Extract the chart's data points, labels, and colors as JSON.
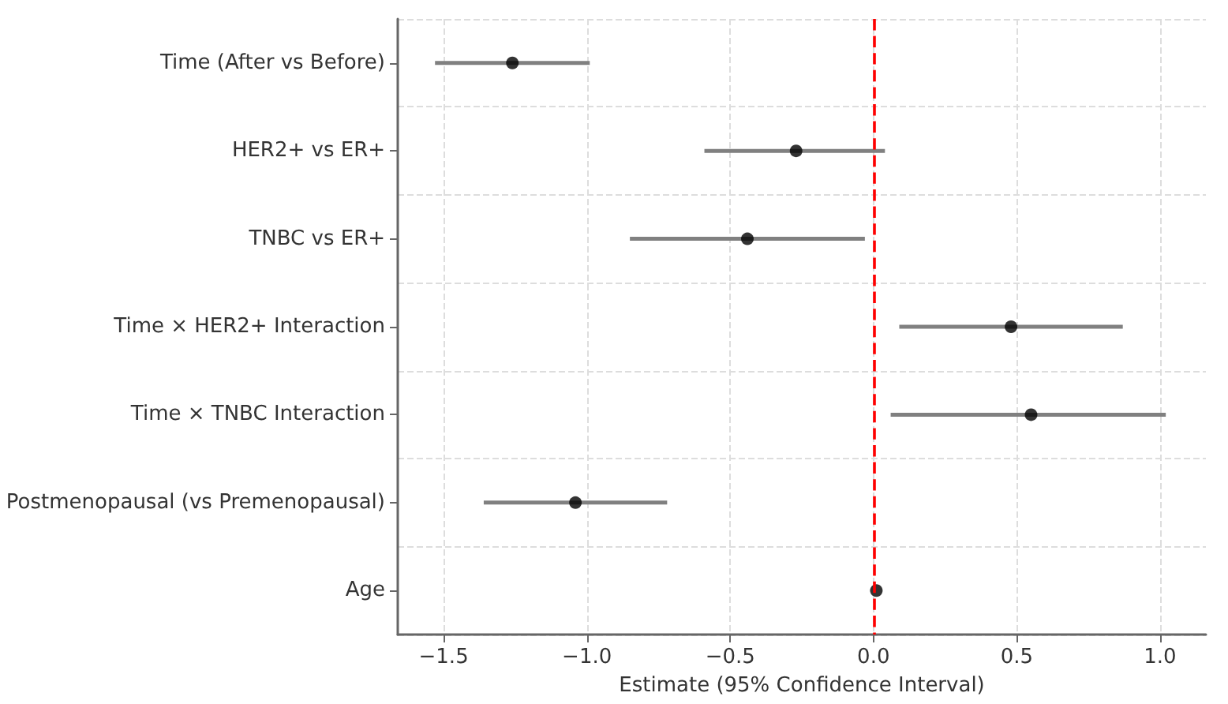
{
  "chart_data": {
    "type": "scatter",
    "orientation": "horizontal",
    "xlabel": "Estimate (95% Confidence Interval)",
    "categories": [
      "Time (After vs Before)",
      "HER2+ vs ER+",
      "TNBC vs ER+",
      "Time × HER2+ Interaction",
      "Time × TNBC Interaction",
      "Postmenopausal (vs Premenopausal)",
      "Age"
    ],
    "series": [
      {
        "color": "#000000",
        "values": [
          -1.26,
          -0.27,
          -0.44,
          0.48,
          0.55,
          -1.04,
          0.01
        ],
        "errors": [
          [
            -1.53,
            -0.99
          ],
          [
            -0.59,
            0.04
          ],
          [
            -0.85,
            -0.03
          ],
          [
            0.09,
            0.87
          ],
          [
            0.06,
            1.02
          ],
          [
            -1.36,
            -0.72
          ],
          null
        ]
      }
    ],
    "xlim": [
      -1.66,
      1.16
    ],
    "xticks": [
      {
        "value": -1.5,
        "label": "−1.5"
      },
      {
        "value": -1,
        "label": "−1.0"
      },
      {
        "value": -0.5,
        "label": "−0.5"
      },
      {
        "value": 0,
        "label": "0.0"
      },
      {
        "value": 0.5,
        "label": "0.5"
      },
      {
        "value": 1,
        "label": "1.0"
      }
    ],
    "ref_lines": [
      {
        "axis": "x",
        "value": 0,
        "color": "#ff0000",
        "line_style": "dashed"
      }
    ],
    "grid": true,
    "marker": "circle"
  }
}
